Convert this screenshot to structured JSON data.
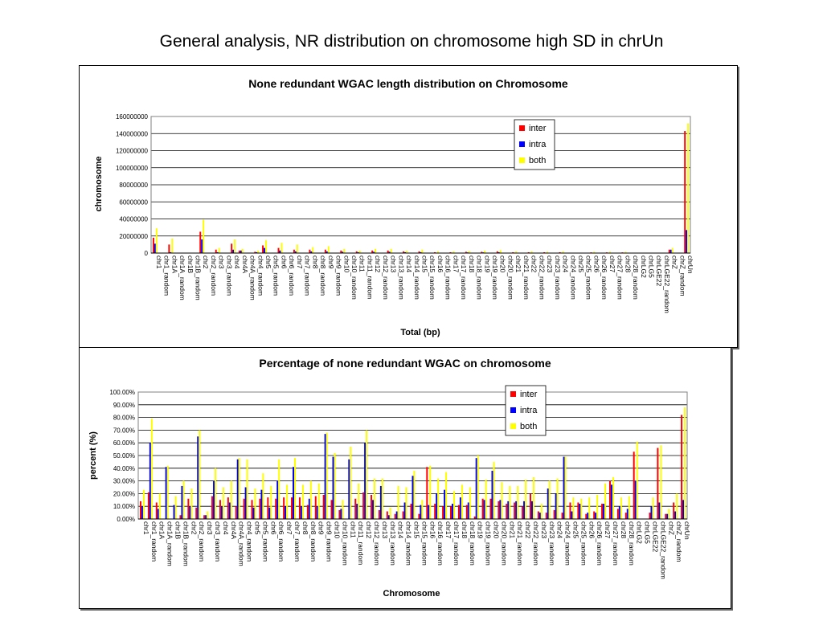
{
  "page_title": "General analysis, NR distribution on chromosome high SD in chrUn",
  "colors": {
    "inter": "#ff0000",
    "intra": "#0000ff",
    "both": "#ffff00"
  },
  "chart_data": [
    {
      "type": "bar",
      "title": "None redundant WGAC length distribution on Chromosome",
      "xlabel": "Total (bp)",
      "ylabel": "chromosome",
      "ylim": [
        0,
        160000000
      ],
      "yticks": [
        "0",
        "20000000",
        "40000000",
        "60000000",
        "80000000",
        "100000000",
        "120000000",
        "140000000",
        "160000000"
      ],
      "grid": true,
      "legend": "top-right",
      "categories": [
        "chr1",
        "chr1_random",
        "chr1A",
        "chr1A_random",
        "chr1B",
        "chr1B_random",
        "chr2",
        "chr2_random",
        "chr3",
        "chr3_random",
        "chr4",
        "chr4A",
        "chr4A_random",
        "chr4_random",
        "chr5",
        "chr5_random",
        "chr6",
        "chr6_random",
        "chr7",
        "chr7_random",
        "chr8",
        "chr8_random",
        "chr9",
        "chr9_random",
        "chr10",
        "chr10_random",
        "chr11",
        "chr11_random",
        "chr12",
        "chr12_random",
        "chr13",
        "chr13_random",
        "chr14",
        "chr14_random",
        "chr15",
        "chr15_random",
        "chr16",
        "chr16_random",
        "chr17",
        "chr17_random",
        "chr18",
        "chr18_random",
        "chr19",
        "chr19_random",
        "chr20",
        "chr20_random",
        "chr21",
        "chr21_random",
        "chr22",
        "chr22_random",
        "chr23",
        "chr23_random",
        "chr24",
        "chr24_random",
        "chr25",
        "chr25_random",
        "chr26",
        "chr26_random",
        "chr27",
        "chr27_random",
        "chr28",
        "chr28_random",
        "chrLG2",
        "chrLG5",
        "chrLGE22",
        "chrLGE22_random",
        "chrZ",
        "chrZ_random",
        "chrUn"
      ],
      "series": [
        {
          "name": "inter",
          "values": [
            18000000,
            0,
            10000000,
            0,
            0,
            0,
            25000000,
            0,
            4000000,
            0,
            11000000,
            3000000,
            0,
            1500000,
            9000000,
            0,
            6000000,
            0,
            4000000,
            0,
            4000000,
            0,
            4000000,
            0,
            3000000,
            0,
            2000000,
            0,
            3000000,
            0,
            3000000,
            0,
            2000000,
            0,
            2000000,
            0,
            1000000,
            0,
            1000000,
            0,
            1500000,
            0,
            1500000,
            0,
            2000000,
            0,
            1000000,
            0,
            1000000,
            0,
            1000000,
            0,
            1000000,
            0,
            0,
            0,
            800000,
            0,
            800000,
            0,
            800000,
            0,
            0,
            0,
            0,
            0,
            4000000,
            0,
            143000000
          ]
        },
        {
          "name": "intra",
          "values": [
            11000000,
            0,
            1000000,
            0,
            0,
            0,
            16000000,
            0,
            1000000,
            0,
            4000000,
            3000000,
            0,
            1000000,
            6000000,
            0,
            3000000,
            0,
            2000000,
            0,
            2000000,
            0,
            2000000,
            0,
            1500000,
            0,
            1000000,
            0,
            1500000,
            0,
            1500000,
            0,
            1000000,
            0,
            1000000,
            0,
            500000,
            0,
            500000,
            0,
            800000,
            0,
            800000,
            0,
            1000000,
            0,
            500000,
            0,
            500000,
            0,
            500000,
            0,
            500000,
            0,
            0,
            0,
            400000,
            0,
            400000,
            0,
            400000,
            0,
            0,
            0,
            0,
            0,
            4000000,
            0,
            27000000
          ]
        },
        {
          "name": "both",
          "values": [
            29000000,
            0,
            17000000,
            0,
            0,
            0,
            39000000,
            0,
            6000000,
            0,
            16000000,
            5000000,
            0,
            3000000,
            15000000,
            0,
            12000000,
            0,
            10000000,
            0,
            7000000,
            0,
            8000000,
            0,
            5000000,
            0,
            3000000,
            0,
            5000000,
            0,
            5000000,
            0,
            3000000,
            0,
            4000000,
            0,
            2000000,
            0,
            2000000,
            0,
            2500000,
            0,
            3000000,
            0,
            3500000,
            0,
            2000000,
            0,
            2000000,
            0,
            1500000,
            0,
            2000000,
            0,
            0,
            0,
            1500000,
            0,
            1500000,
            0,
            1500000,
            0,
            0,
            0,
            0,
            0,
            6000000,
            0,
            152000000
          ]
        }
      ]
    },
    {
      "type": "bar",
      "title": "Percentage of none redundant WGAC on chromosome",
      "xlabel": "Chromosome",
      "ylabel": "percent (%)",
      "ylim": [
        0,
        100
      ],
      "yticks": [
        "0.00%",
        "10.00%",
        "20.00%",
        "30.00%",
        "40.00%",
        "50.00%",
        "60.00%",
        "70.00%",
        "80.00%",
        "90.00%",
        "100.00%"
      ],
      "grid": true,
      "legend": "top-right",
      "categories": [
        "chr1",
        "chr1_random",
        "chr1A",
        "chr1A_random",
        "chr1B",
        "chr1B_random",
        "chr2",
        "chr2_random",
        "chr3",
        "chr3_random",
        "chr4",
        "chr4A",
        "chr4A_random",
        "chr4_random",
        "chr5",
        "chr5_random",
        "chr6",
        "chr6_random",
        "chr7",
        "chr7_random",
        "chr8",
        "chr8_random",
        "chr9",
        "chr9_random",
        "chr10",
        "chr10_random",
        "chr11",
        "chr11_random",
        "chr12",
        "chr12_random",
        "chr13",
        "chr13_random",
        "chr14",
        "chr14_random",
        "chr15",
        "chr15_random",
        "chr16",
        "chr16_random",
        "chr17",
        "chr17_random",
        "chr18",
        "chr18_random",
        "chr19",
        "chr19_random",
        "chr20",
        "chr20_random",
        "chr21",
        "chr21_random",
        "chr22",
        "chr22_random",
        "chr23",
        "chr23_random",
        "chr24",
        "chr24_random",
        "chr25",
        "chr25_random",
        "chr26",
        "chr26_random",
        "chr27",
        "chr27_random",
        "chr28",
        "chr28_random",
        "chrLG2",
        "chrLG5",
        "chrLGE22",
        "chrLGE22_random",
        "chrZ",
        "chrZ_random",
        "chrUn"
      ],
      "series": [
        {
          "name": "inter",
          "values": [
            14,
            21,
            13,
            0,
            0,
            3,
            16,
            9,
            3,
            18,
            15,
            17,
            10,
            16,
            15,
            16,
            17,
            16,
            17,
            17,
            17,
            11,
            18,
            19,
            15,
            7,
            0,
            16,
            21,
            19,
            7,
            6,
            4,
            6,
            12,
            4,
            41,
            12,
            10,
            10,
            11,
            11,
            2,
            16,
            16,
            14,
            12,
            13,
            10,
            20,
            6,
            5,
            7,
            5,
            13,
            13,
            4,
            6,
            12,
            30,
            8,
            5,
            53,
            0,
            5,
            56,
            4,
            13,
            82
          ]
        },
        {
          "name": "intra",
          "values": [
            10,
            60,
            8,
            41,
            11,
            26,
            10,
            65,
            3,
            30,
            10,
            13,
            47,
            25,
            9,
            23,
            9,
            30,
            10,
            41,
            10,
            16,
            10,
            67,
            49,
            8,
            47,
            12,
            60,
            15,
            26,
            3,
            6,
            13,
            34,
            11,
            11,
            20,
            23,
            12,
            17,
            13,
            48,
            15,
            38,
            15,
            14,
            14,
            14,
            14,
            5,
            24,
            20,
            49,
            6,
            12,
            5,
            5,
            12,
            27,
            10,
            8,
            30,
            0,
            10,
            13,
            4,
            6,
            15
          ]
        },
        {
          "name": "both",
          "values": [
            23,
            79,
            20,
            42,
            18,
            30,
            24,
            70,
            6,
            40,
            25,
            30,
            48,
            47,
            24,
            36,
            26,
            47,
            27,
            48,
            27,
            30,
            28,
            68,
            52,
            15,
            57,
            28,
            70,
            32,
            32,
            9,
            26,
            25,
            38,
            15,
            42,
            32,
            37,
            22,
            27,
            25,
            50,
            31,
            45,
            29,
            26,
            26,
            31,
            33,
            12,
            30,
            32,
            49,
            17,
            16,
            17,
            19,
            28,
            33,
            17,
            18,
            61,
            0,
            17,
            58,
            8,
            20,
            88
          ]
        }
      ]
    }
  ]
}
